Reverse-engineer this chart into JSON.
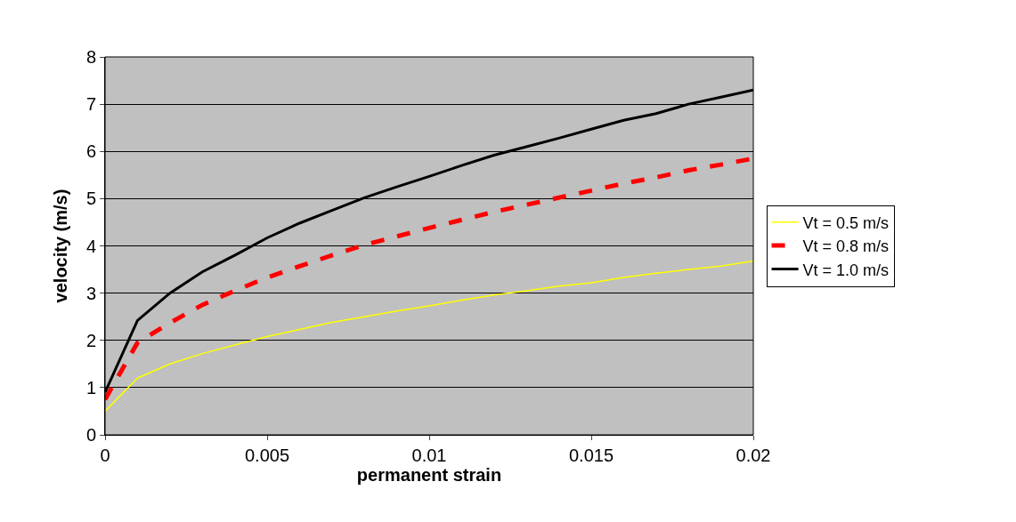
{
  "chart_data": {
    "type": "line",
    "xlabel": "permanent strain",
    "ylabel": "velocity (m/s)",
    "x": [
      0,
      0.001,
      0.002,
      0.003,
      0.004,
      0.005,
      0.006,
      0.007,
      0.008,
      0.009,
      0.01,
      0.011,
      0.012,
      0.013,
      0.014,
      0.015,
      0.016,
      0.017,
      0.018,
      0.019,
      0.02
    ],
    "series": [
      {
        "name": "Vt = 0.5 m/s",
        "color": "#ffff00",
        "line_style": "solid",
        "values": [
          0.5,
          1.2,
          1.5,
          1.72,
          1.9,
          2.08,
          2.23,
          2.38,
          2.5,
          2.62,
          2.73,
          2.85,
          2.96,
          3.05,
          3.15,
          3.22,
          3.33,
          3.42,
          3.5,
          3.57,
          3.68
        ]
      },
      {
        "name": "Vt = 0.8 m/s",
        "color": "#ff0000",
        "line_style": "dashed",
        "values": [
          0.75,
          1.95,
          2.37,
          2.75,
          3.05,
          3.33,
          3.57,
          3.8,
          4.02,
          4.2,
          4.38,
          4.55,
          4.72,
          4.87,
          5.02,
          5.17,
          5.32,
          5.45,
          5.6,
          5.72,
          5.85
        ]
      },
      {
        "name": "Vt = 1.0 m/s",
        "color": "#000000",
        "line_style": "solid",
        "values": [
          0.9,
          2.42,
          3.0,
          3.45,
          3.8,
          4.17,
          4.48,
          4.75,
          5.02,
          5.25,
          5.47,
          5.7,
          5.92,
          6.1,
          6.28,
          6.47,
          6.66,
          6.8,
          7.0,
          7.15,
          7.3
        ]
      }
    ],
    "xlim": [
      0,
      0.02
    ],
    "xticks": [
      0,
      0.005,
      0.01,
      0.015,
      0.02
    ],
    "ylim": [
      0,
      8
    ],
    "yticks": [
      0,
      1,
      2,
      3,
      4,
      5,
      6,
      7,
      8
    ],
    "grid": "y",
    "legend": "right",
    "marker": "none"
  }
}
